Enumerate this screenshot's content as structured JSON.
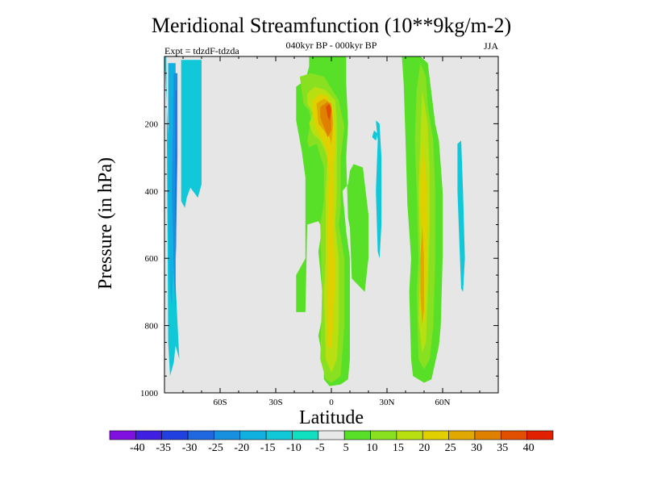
{
  "chart_data": {
    "type": "contour",
    "title": "Meridional Streamfunction (10**9kg/m-2)",
    "subtitle": "040kyr BP - 000kyr BP",
    "experiment": "Expt = tdzdF-tdzda",
    "season": "JJA",
    "xlabel": "Latitude",
    "ylabel": "Pressure (in hPa)",
    "xlim": [
      -90,
      90
    ],
    "ylim": [
      0,
      1000
    ],
    "y_inverted": true,
    "x_ticks": [
      {
        "value": -60,
        "label": "60S"
      },
      {
        "value": -30,
        "label": "30S"
      },
      {
        "value": 0,
        "label": "0"
      },
      {
        "value": 30,
        "label": "30N"
      },
      {
        "value": 60,
        "label": "60N"
      }
    ],
    "y_ticks": [
      {
        "value": 200,
        "label": "200"
      },
      {
        "value": 400,
        "label": "400"
      },
      {
        "value": 600,
        "label": "600"
      },
      {
        "value": 800,
        "label": "800"
      },
      {
        "value": 1000,
        "label": "1000"
      }
    ],
    "background_color": "#e6e6e6",
    "colorbar": {
      "labels": [
        "-40",
        "-35",
        "-30",
        "-25",
        "-20",
        "-15",
        "-10",
        "-5",
        "5",
        "10",
        "15",
        "20",
        "25",
        "30",
        "35",
        "40"
      ],
      "colors": [
        "#8010e0",
        "#4020e0",
        "#2040e0",
        "#2068e0",
        "#1890e0",
        "#10b0e0",
        "#10c8d8",
        "#10e0c0",
        "#e8e8e8",
        "#58e028",
        "#88e020",
        "#b8e010",
        "#e0d000",
        "#e0a800",
        "#e08000",
        "#e05000",
        "#e02000"
      ]
    },
    "regions": [
      {
        "name": "south-polar-cell",
        "points": [
          [
            -90,
            10
          ],
          [
            -81,
            10
          ],
          [
            -81,
            430
          ],
          [
            -79,
            450
          ],
          [
            -78,
            420
          ],
          [
            -76,
            390
          ],
          [
            -72,
            420
          ],
          [
            -70,
            380
          ],
          [
            -70,
            10
          ],
          [
            -90,
            10
          ],
          [
            -90,
            0
          ],
          [
            -89,
            0
          ],
          [
            -88,
            850
          ],
          [
            -87,
            950
          ],
          [
            -85,
            910
          ],
          [
            -84,
            860
          ],
          [
            -82,
            900
          ]
        ],
        "level": -10
      },
      {
        "name": "south-cell-inner",
        "points": [
          [
            -88,
            20
          ],
          [
            -84,
            20
          ],
          [
            -84,
            300
          ],
          [
            -85,
            600
          ],
          [
            -86,
            740
          ],
          [
            -87,
            700
          ],
          [
            -88,
            500
          ]
        ],
        "level": -15
      },
      {
        "name": "south-cell-core",
        "points": [
          [
            -85,
            50
          ],
          [
            -83,
            50
          ],
          [
            -83,
            300
          ],
          [
            -84,
            600
          ],
          [
            -84,
            760
          ],
          [
            -85,
            640
          ],
          [
            -86,
            400
          ]
        ],
        "level": -20
      },
      {
        "name": "south-cell-deep",
        "points": [
          [
            -84,
            100
          ],
          [
            -83.5,
            100
          ],
          [
            -83.5,
            400
          ],
          [
            -83.8,
            600
          ],
          [
            -84.2,
            480
          ]
        ],
        "level": -25
      },
      {
        "name": "tropical-cell-outer",
        "points": [
          [
            -19,
            0
          ],
          [
            -12,
            0
          ],
          [
            -12,
            30
          ],
          [
            -14,
            70
          ],
          [
            -19,
            90
          ],
          [
            -19,
            190
          ],
          [
            -16,
            280
          ],
          [
            -14,
            360
          ],
          [
            -14,
            600
          ],
          [
            -19,
            650
          ],
          [
            -19,
            760
          ],
          [
            -14,
            760
          ],
          [
            -13,
            500
          ],
          [
            -7,
            490
          ],
          [
            -5,
            510
          ],
          [
            -7,
            580
          ],
          [
            -4,
            750
          ],
          [
            -7,
            830
          ],
          [
            -4,
            920
          ],
          [
            -4,
            960
          ],
          [
            -1,
            980
          ],
          [
            5,
            975
          ],
          [
            9,
            960
          ],
          [
            10,
            900
          ],
          [
            10,
            600
          ],
          [
            8,
            520
          ],
          [
            6,
            400
          ],
          [
            9,
            380
          ],
          [
            10,
            340
          ],
          [
            12,
            320
          ],
          [
            17,
            330
          ],
          [
            20,
            470
          ],
          [
            20,
            600
          ],
          [
            18,
            700
          ],
          [
            11,
            660
          ],
          [
            10,
            510
          ],
          [
            9,
            480
          ],
          [
            8,
            300
          ],
          [
            9,
            200
          ],
          [
            8,
            80
          ],
          [
            8,
            0
          ]
        ],
        "level": 5
      },
      {
        "name": "tropical-cell-10",
        "points": [
          [
            -17,
            60
          ],
          [
            -11,
            50
          ],
          [
            -4,
            60
          ],
          [
            4,
            130
          ],
          [
            7,
            210
          ],
          [
            5,
            300
          ],
          [
            5,
            450
          ],
          [
            4,
            500
          ],
          [
            7,
            600
          ],
          [
            7,
            800
          ],
          [
            5,
            950
          ],
          [
            0,
            970
          ],
          [
            -3,
            960
          ],
          [
            -6,
            900
          ],
          [
            -5,
            700
          ],
          [
            -6,
            500
          ],
          [
            -4,
            430
          ],
          [
            -4,
            330
          ],
          [
            -8,
            260
          ],
          [
            -12,
            270
          ],
          [
            -13,
            250
          ],
          [
            -11,
            190
          ],
          [
            -12,
            160
          ],
          [
            -15,
            140
          ]
        ],
        "level": 10
      },
      {
        "name": "tropical-cell-15",
        "points": [
          [
            -13,
            110
          ],
          [
            -9,
            90
          ],
          [
            -3,
            100
          ],
          [
            2,
            130
          ],
          [
            3,
            190
          ],
          [
            3,
            300
          ],
          [
            3,
            400
          ],
          [
            2,
            500
          ],
          [
            4,
            600
          ],
          [
            4,
            800
          ],
          [
            3,
            900
          ],
          [
            0,
            940
          ],
          [
            -3,
            900
          ],
          [
            -4,
            700
          ],
          [
            -3,
            600
          ],
          [
            -3,
            400
          ],
          [
            -2,
            300
          ],
          [
            -6,
            250
          ],
          [
            -10,
            230
          ],
          [
            -12,
            200
          ],
          [
            -10,
            170
          ],
          [
            -13,
            140
          ]
        ],
        "level": 15
      },
      {
        "name": "tropical-cell-20",
        "points": [
          [
            -10,
            130
          ],
          [
            -6,
            110
          ],
          [
            -2,
            120
          ],
          [
            1,
            160
          ],
          [
            2,
            250
          ],
          [
            1,
            350
          ],
          [
            1,
            500
          ],
          [
            2,
            650
          ],
          [
            1,
            800
          ],
          [
            0,
            870
          ],
          [
            -2,
            860
          ],
          [
            -2,
            700
          ],
          [
            -2,
            500
          ],
          [
            -1,
            350
          ],
          [
            -3,
            270
          ],
          [
            -7,
            230
          ],
          [
            -9,
            200
          ],
          [
            -10,
            170
          ]
        ],
        "level": 20
      },
      {
        "name": "tropical-cell-25",
        "points": [
          [
            -8,
            140
          ],
          [
            -4,
            125
          ],
          [
            0,
            140
          ],
          [
            1,
            200
          ],
          [
            0,
            260
          ],
          [
            -1,
            240
          ],
          [
            -4,
            220
          ],
          [
            -7,
            200
          ]
        ],
        "level": 25
      },
      {
        "name": "tropical-cell-30",
        "points": [
          [
            -6,
            150
          ],
          [
            -2,
            135
          ],
          [
            0,
            150
          ],
          [
            0,
            220
          ],
          [
            -2,
            240
          ],
          [
            -4,
            210
          ],
          [
            -6,
            180
          ]
        ],
        "level": 30
      },
      {
        "name": "tropical-cell-35",
        "points": [
          [
            -3,
            150
          ],
          [
            -1,
            140
          ],
          [
            0,
            160
          ],
          [
            -1,
            190
          ],
          [
            -2,
            180
          ]
        ],
        "level": 35
      },
      {
        "name": "north-cell-outer",
        "points": [
          [
            38,
            0
          ],
          [
            48,
            0
          ],
          [
            52,
            20
          ],
          [
            56,
            200
          ],
          [
            58,
            250
          ],
          [
            60,
            400
          ],
          [
            60,
            600
          ],
          [
            59,
            800
          ],
          [
            58,
            860
          ],
          [
            54,
            960
          ],
          [
            50,
            970
          ],
          [
            44,
            950
          ],
          [
            43,
            900
          ],
          [
            42,
            700
          ],
          [
            43,
            600
          ],
          [
            41,
            440
          ],
          [
            40,
            250
          ],
          [
            39,
            80
          ]
        ],
        "level": 5
      },
      {
        "name": "north-cell-10",
        "points": [
          [
            48,
            20
          ],
          [
            51,
            60
          ],
          [
            52,
            150
          ],
          [
            55,
            250
          ],
          [
            56,
            400
          ],
          [
            56,
            600
          ],
          [
            55,
            800
          ],
          [
            53,
            900
          ],
          [
            50,
            930
          ],
          [
            47,
            900
          ],
          [
            46,
            700
          ],
          [
            47,
            600
          ],
          [
            46,
            400
          ],
          [
            45,
            250
          ],
          [
            46,
            100
          ]
        ],
        "level": 10
      },
      {
        "name": "north-cell-15",
        "points": [
          [
            49,
            100
          ],
          [
            52,
            200
          ],
          [
            53,
            350
          ],
          [
            53,
            500
          ],
          [
            52,
            700
          ],
          [
            51,
            850
          ],
          [
            49,
            880
          ],
          [
            47,
            780
          ],
          [
            48,
            600
          ],
          [
            47,
            400
          ],
          [
            48,
            250
          ]
        ],
        "level": 15
      },
      {
        "name": "north-cell-20",
        "points": [
          [
            49,
            250
          ],
          [
            51,
            350
          ],
          [
            52,
            500
          ],
          [
            51,
            700
          ],
          [
            50,
            800
          ],
          [
            48,
            750
          ],
          [
            49,
            600
          ],
          [
            48,
            400
          ]
        ],
        "level": 20
      },
      {
        "name": "north-cell-25",
        "points": [
          [
            49,
            500
          ],
          [
            50,
            600
          ],
          [
            50,
            750
          ],
          [
            49,
            800
          ],
          [
            48,
            700
          ],
          [
            48,
            600
          ]
        ],
        "level": 25
      },
      {
        "name": "neg-patch-20N",
        "points": [
          [
            24,
            190
          ],
          [
            26,
            200
          ],
          [
            27,
            300
          ],
          [
            27,
            500
          ],
          [
            26,
            600
          ],
          [
            25,
            580
          ],
          [
            24,
            400
          ],
          [
            25,
            250
          ]
        ],
        "level": -10
      },
      {
        "name": "neg-patch-22N-dot",
        "points": [
          [
            23,
            220
          ],
          [
            25,
            230
          ],
          [
            24,
            250
          ],
          [
            22,
            240
          ]
        ],
        "level": -10
      },
      {
        "name": "neg-patch-70N",
        "points": [
          [
            68,
            260
          ],
          [
            70,
            250
          ],
          [
            71,
            400
          ],
          [
            72,
            600
          ],
          [
            71,
            700
          ],
          [
            70,
            690
          ],
          [
            69,
            550
          ],
          [
            68,
            400
          ]
        ],
        "level": -10
      }
    ]
  }
}
